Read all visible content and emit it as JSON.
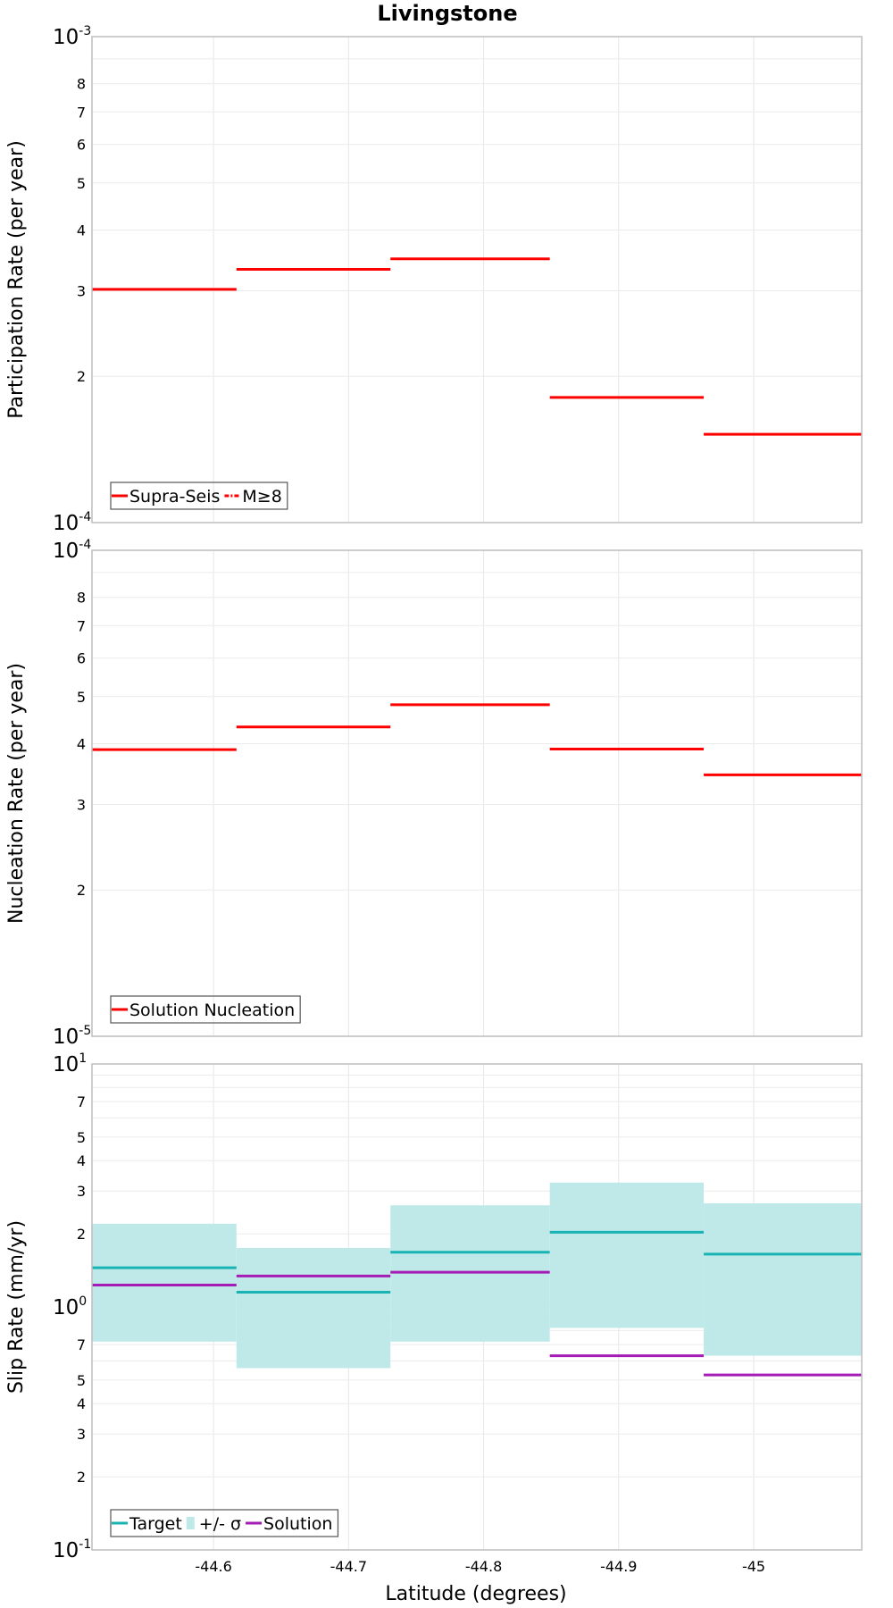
{
  "chart_data": {
    "title": "Livingstone",
    "xlabel": "Latitude (degrees)",
    "x_reversed": true,
    "xlim": [
      -44.51,
      -45.08
    ],
    "x_ticks": [
      -44.6,
      -44.7,
      -44.8,
      -44.9,
      -45
    ],
    "x_tick_labels": [
      "-44.6",
      "-44.7",
      "-44.8",
      "-44.9",
      "-45"
    ],
    "grid": true,
    "panels": [
      {
        "type": "step",
        "ylabel": "Participation Rate (per year)",
        "y_scale": "log",
        "ylim": [
          0.0001,
          0.001
        ],
        "decade_labels": [
          {
            "value": 0.001,
            "base": "10",
            "exp": "-3"
          },
          {
            "value": 0.0001,
            "base": "10",
            "exp": "-4"
          }
        ],
        "minor_labels": [
          {
            "value": 0.0008,
            "label": "8"
          },
          {
            "value": 0.0007,
            "label": "7"
          },
          {
            "value": 0.0006,
            "label": "6"
          },
          {
            "value": 0.0005,
            "label": "5"
          },
          {
            "value": 0.0004,
            "label": "4"
          },
          {
            "value": 0.0003,
            "label": "3"
          },
          {
            "value": 0.0002,
            "label": "2"
          }
        ],
        "series": [
          {
            "name": "Supra-Seis",
            "color": "#ff0000",
            "style": "solid",
            "segments": [
              [
                -44.51,
                -44.617,
                0.000302
              ],
              [
                -44.617,
                -44.731,
                0.000332
              ],
              [
                -44.731,
                -44.849,
                0.000349
              ],
              [
                -44.849,
                -44.963,
                0.000181
              ],
              [
                -44.963,
                -45.08,
                0.000152
              ]
            ]
          },
          {
            "name": "M≥8",
            "color": "#ff0000",
            "style": "dashdot",
            "segments": []
          }
        ],
        "legend": {
          "position": "bottom-left",
          "entries": [
            {
              "label": "Supra-Seis",
              "color": "#ff0000",
              "kind": "line"
            },
            {
              "label": "M≥8",
              "color": "#ff0000",
              "kind": "dashdot"
            }
          ]
        }
      },
      {
        "type": "step",
        "ylabel": "Nucleation Rate (per year)",
        "y_scale": "log",
        "ylim": [
          1e-05,
          0.0001
        ],
        "decade_labels": [
          {
            "value": 0.0001,
            "base": "10",
            "exp": "-4"
          },
          {
            "value": 1e-05,
            "base": "10",
            "exp": "-5"
          }
        ],
        "minor_labels": [
          {
            "value": 8e-05,
            "label": "8"
          },
          {
            "value": 7e-05,
            "label": "7"
          },
          {
            "value": 6e-05,
            "label": "6"
          },
          {
            "value": 5e-05,
            "label": "5"
          },
          {
            "value": 4e-05,
            "label": "4"
          },
          {
            "value": 3e-05,
            "label": "3"
          },
          {
            "value": 2e-05,
            "label": "2"
          }
        ],
        "series": [
          {
            "name": "Solution Nucleation",
            "color": "#ff0000",
            "style": "solid",
            "segments": [
              [
                -44.51,
                -44.617,
                3.89e-05
              ],
              [
                -44.617,
                -44.731,
                4.33e-05
              ],
              [
                -44.731,
                -44.849,
                4.81e-05
              ],
              [
                -44.849,
                -44.963,
                3.9e-05
              ],
              [
                -44.963,
                -45.08,
                3.45e-05
              ]
            ]
          }
        ],
        "legend": {
          "position": "bottom-left",
          "entries": [
            {
              "label": "Solution Nucleation",
              "color": "#ff0000",
              "kind": "line"
            }
          ]
        }
      },
      {
        "type": "step",
        "ylabel": "Slip Rate (mm/yr)",
        "y_scale": "log",
        "ylim": [
          0.1,
          10
        ],
        "decade_labels": [
          {
            "value": 10,
            "base": "10",
            "exp": "1"
          },
          {
            "value": 1,
            "base": "10",
            "exp": "0"
          },
          {
            "value": 0.1,
            "base": "10",
            "exp": "-1"
          }
        ],
        "minor_labels": [
          {
            "value": 7,
            "label": "7"
          },
          {
            "value": 5,
            "label": "5"
          },
          {
            "value": 4,
            "label": "4"
          },
          {
            "value": 3,
            "label": "3"
          },
          {
            "value": 2,
            "label": "2"
          },
          {
            "value": 0.7,
            "label": "7"
          },
          {
            "value": 0.5,
            "label": "5"
          },
          {
            "value": 0.4,
            "label": "4"
          },
          {
            "value": 0.3,
            "label": "3"
          },
          {
            "value": 0.2,
            "label": "2"
          }
        ],
        "bands": [
          {
            "name": "+/- σ",
            "color": "#bfe9e9",
            "segments": [
              [
                -44.51,
                -44.617,
                0.72,
                2.2
              ],
              [
                -44.617,
                -44.731,
                0.56,
                1.75
              ],
              [
                -44.731,
                -44.849,
                0.72,
                2.62
              ],
              [
                -44.849,
                -44.963,
                0.82,
                3.25
              ],
              [
                -44.963,
                -45.08,
                0.63,
                2.67
              ]
            ]
          }
        ],
        "series": [
          {
            "name": "Target",
            "color": "#1ab3b3",
            "style": "solid",
            "segments": [
              [
                -44.51,
                -44.617,
                1.45
              ],
              [
                -44.617,
                -44.731,
                1.15
              ],
              [
                -44.731,
                -44.849,
                1.68
              ],
              [
                -44.849,
                -44.963,
                2.03
              ],
              [
                -44.963,
                -45.08,
                1.65
              ]
            ]
          },
          {
            "name": "Solution",
            "color": "#a41bb5",
            "style": "solid",
            "segments": [
              [
                -44.51,
                -44.617,
                1.23
              ],
              [
                -44.617,
                -44.731,
                1.34
              ],
              [
                -44.731,
                -44.849,
                1.39
              ],
              [
                -44.849,
                -44.963,
                0.63
              ],
              [
                -44.963,
                -45.08,
                0.525
              ]
            ]
          }
        ],
        "legend": {
          "position": "bottom-left",
          "entries": [
            {
              "label": "Target",
              "color": "#1ab3b3",
              "kind": "line"
            },
            {
              "label": "+/- σ",
              "color": "#bfe9e9",
              "kind": "box"
            },
            {
              "label": "Solution",
              "color": "#a41bb5",
              "kind": "line"
            }
          ]
        }
      }
    ]
  }
}
